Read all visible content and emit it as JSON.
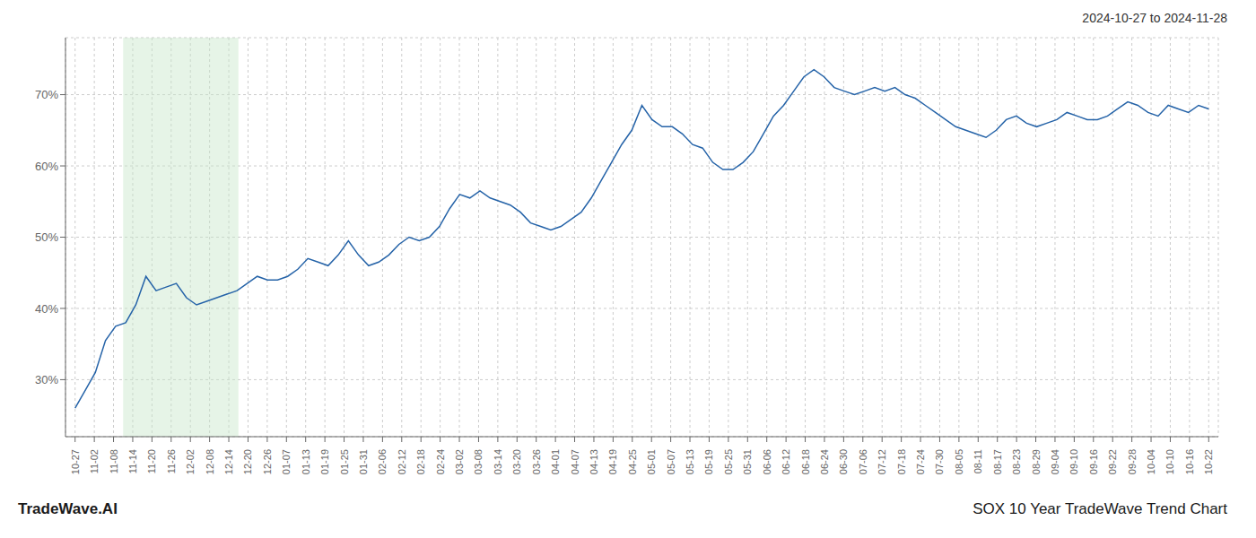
{
  "chart_data": {
    "type": "line",
    "title": "SOX 10 Year TradeWave Trend Chart",
    "subtitle": "2024-10-27 to 2024-11-28",
    "annotations": [
      "TradeWave.AI"
    ],
    "color": "#2563a8",
    "grid": true,
    "xlim": [
      -0.5,
      59.5
    ],
    "ylim": [
      22,
      78
    ],
    "yticks": [
      {
        "value": 30,
        "label": "30%"
      },
      {
        "value": 40,
        "label": "40%"
      },
      {
        "value": 50,
        "label": "50%"
      },
      {
        "value": 60,
        "label": "60%"
      },
      {
        "value": 70,
        "label": "70%"
      }
    ],
    "xticks": [
      {
        "value": 0,
        "label": "10-27"
      },
      {
        "value": 1,
        "label": "11-02"
      },
      {
        "value": 2,
        "label": "11-08"
      },
      {
        "value": 3,
        "label": "11-14"
      },
      {
        "value": 4,
        "label": "11-20"
      },
      {
        "value": 5,
        "label": "11-26"
      },
      {
        "value": 6,
        "label": "12-02"
      },
      {
        "value": 7,
        "label": "12-08"
      },
      {
        "value": 8,
        "label": "12-14"
      },
      {
        "value": 9,
        "label": "12-20"
      },
      {
        "value": 10,
        "label": "12-26"
      },
      {
        "value": 11,
        "label": "01-07"
      },
      {
        "value": 12,
        "label": "01-13"
      },
      {
        "value": 13,
        "label": "01-19"
      },
      {
        "value": 14,
        "label": "01-25"
      },
      {
        "value": 15,
        "label": "01-31"
      },
      {
        "value": 16,
        "label": "02-06"
      },
      {
        "value": 17,
        "label": "02-12"
      },
      {
        "value": 18,
        "label": "02-18"
      },
      {
        "value": 19,
        "label": "02-24"
      },
      {
        "value": 20,
        "label": "03-02"
      },
      {
        "value": 21,
        "label": "03-08"
      },
      {
        "value": 22,
        "label": "03-14"
      },
      {
        "value": 23,
        "label": "03-20"
      },
      {
        "value": 24,
        "label": "03-26"
      },
      {
        "value": 25,
        "label": "04-01"
      },
      {
        "value": 26,
        "label": "04-07"
      },
      {
        "value": 27,
        "label": "04-13"
      },
      {
        "value": 28,
        "label": "04-19"
      },
      {
        "value": 29,
        "label": "04-25"
      },
      {
        "value": 30,
        "label": "05-01"
      },
      {
        "value": 31,
        "label": "05-07"
      },
      {
        "value": 32,
        "label": "05-13"
      },
      {
        "value": 33,
        "label": "05-19"
      },
      {
        "value": 34,
        "label": "05-25"
      },
      {
        "value": 35,
        "label": "05-31"
      },
      {
        "value": 36,
        "label": "06-06"
      },
      {
        "value": 37,
        "label": "06-12"
      },
      {
        "value": 38,
        "label": "06-18"
      },
      {
        "value": 39,
        "label": "06-24"
      },
      {
        "value": 40,
        "label": "06-30"
      },
      {
        "value": 41,
        "label": "07-06"
      },
      {
        "value": 42,
        "label": "07-12"
      },
      {
        "value": 43,
        "label": "07-18"
      },
      {
        "value": 44,
        "label": "07-24"
      },
      {
        "value": 45,
        "label": "07-30"
      },
      {
        "value": 46,
        "label": "08-05"
      },
      {
        "value": 47,
        "label": "08-11"
      },
      {
        "value": 48,
        "label": "08-17"
      },
      {
        "value": 49,
        "label": "08-23"
      },
      {
        "value": 50,
        "label": "08-29"
      },
      {
        "value": 51,
        "label": "09-04"
      },
      {
        "value": 52,
        "label": "09-10"
      },
      {
        "value": 53,
        "label": "09-16"
      },
      {
        "value": 54,
        "label": "09-22"
      },
      {
        "value": 55,
        "label": "09-28"
      },
      {
        "value": 56,
        "label": "10-04"
      },
      {
        "value": 57,
        "label": "10-10"
      },
      {
        "value": 58,
        "label": "10-16"
      },
      {
        "value": 59,
        "label": "10-22"
      }
    ],
    "shaded_span": {
      "x": [
        2.5,
        8.5
      ],
      "color": "#c8e6c9"
    },
    "x": [
      0,
      0.526786,
      1.053571,
      1.580357,
      2.107143,
      2.633929,
      3.160714,
      3.6875,
      4.214286,
      4.741071,
      5.267857,
      5.794643,
      6.321429,
      6.848214,
      7.375,
      7.901786,
      8.428571,
      8.955357,
      9.482143,
      10.008929,
      10.535714,
      11.0625,
      11.589286,
      12.116071,
      12.642857,
      13.169643,
      13.696429,
      14.223214,
      14.75,
      15.276786,
      15.803571,
      16.330357,
      16.857143,
      17.383929,
      17.910714,
      18.4375,
      18.964286,
      19.491071,
      20.017857,
      20.544643,
      21.071429,
      21.598214,
      22.125,
      22.651786,
      23.178571,
      23.705357,
      24.232143,
      24.758929,
      25.285714,
      25.8125,
      26.339286,
      26.866071,
      27.392857,
      27.919643,
      28.446429,
      28.973214,
      29.5,
      30.026786,
      30.553571,
      31.080357,
      31.607143,
      32.133929,
      32.660714,
      33.1875,
      33.714286,
      34.241071,
      34.767857,
      35.294643,
      35.821429,
      36.348214,
      36.875,
      37.401786,
      37.928571,
      38.455357,
      38.982143,
      39.508929,
      40.035714,
      40.5625,
      41.089286,
      41.616071,
      42.142857,
      42.669643,
      43.196429,
      43.723214,
      44.25,
      44.776786,
      45.303571,
      45.830357,
      46.357143,
      46.883929,
      47.410714,
      47.9375,
      48.464286,
      48.991071,
      49.517857,
      50.044643,
      50.571429,
      51.098214,
      51.625,
      52.151786,
      52.678571,
      53.205357,
      53.732143,
      54.258929,
      54.785714,
      55.3125,
      55.839286,
      56.366071,
      56.892857,
      57.419643,
      57.946429,
      58.473214,
      59
    ],
    "values": [
      26.0,
      28.5,
      31.0,
      35.5,
      37.5,
      38.0,
      40.5,
      44.5,
      42.5,
      43.0,
      43.5,
      41.5,
      40.5,
      41.0,
      41.5,
      42.0,
      42.5,
      43.5,
      44.5,
      44.0,
      44.0,
      44.5,
      45.5,
      47.0,
      46.5,
      46.0,
      47.5,
      49.5,
      47.5,
      46.0,
      46.5,
      47.5,
      49.0,
      50.0,
      49.5,
      50.0,
      51.5,
      54.0,
      56.0,
      55.5,
      56.5,
      55.5,
      55.0,
      54.5,
      53.5,
      52.0,
      51.5,
      51.0,
      51.5,
      52.5,
      53.5,
      55.5,
      58.0,
      60.5,
      63.0,
      65.0,
      68.5,
      66.5,
      65.5,
      65.5,
      64.5,
      63.0,
      62.5,
      60.5,
      59.5,
      59.5,
      60.5,
      62.0,
      64.5,
      67.0,
      68.5,
      70.5,
      72.5,
      73.5,
      72.5,
      71.0,
      70.5,
      70.0,
      70.5,
      71.0,
      70.5,
      71.0,
      70.0,
      69.5,
      68.5,
      67.5,
      66.5,
      65.5,
      65.0,
      64.5,
      64.0,
      65.0,
      66.5,
      67.0,
      66.0,
      65.5,
      66.0,
      66.5,
      67.5,
      67.0,
      66.5,
      66.5,
      67.0,
      68.0,
      69.0,
      68.5,
      67.5,
      67.0,
      68.5,
      68.0,
      67.5,
      68.5,
      68.0
    ]
  }
}
